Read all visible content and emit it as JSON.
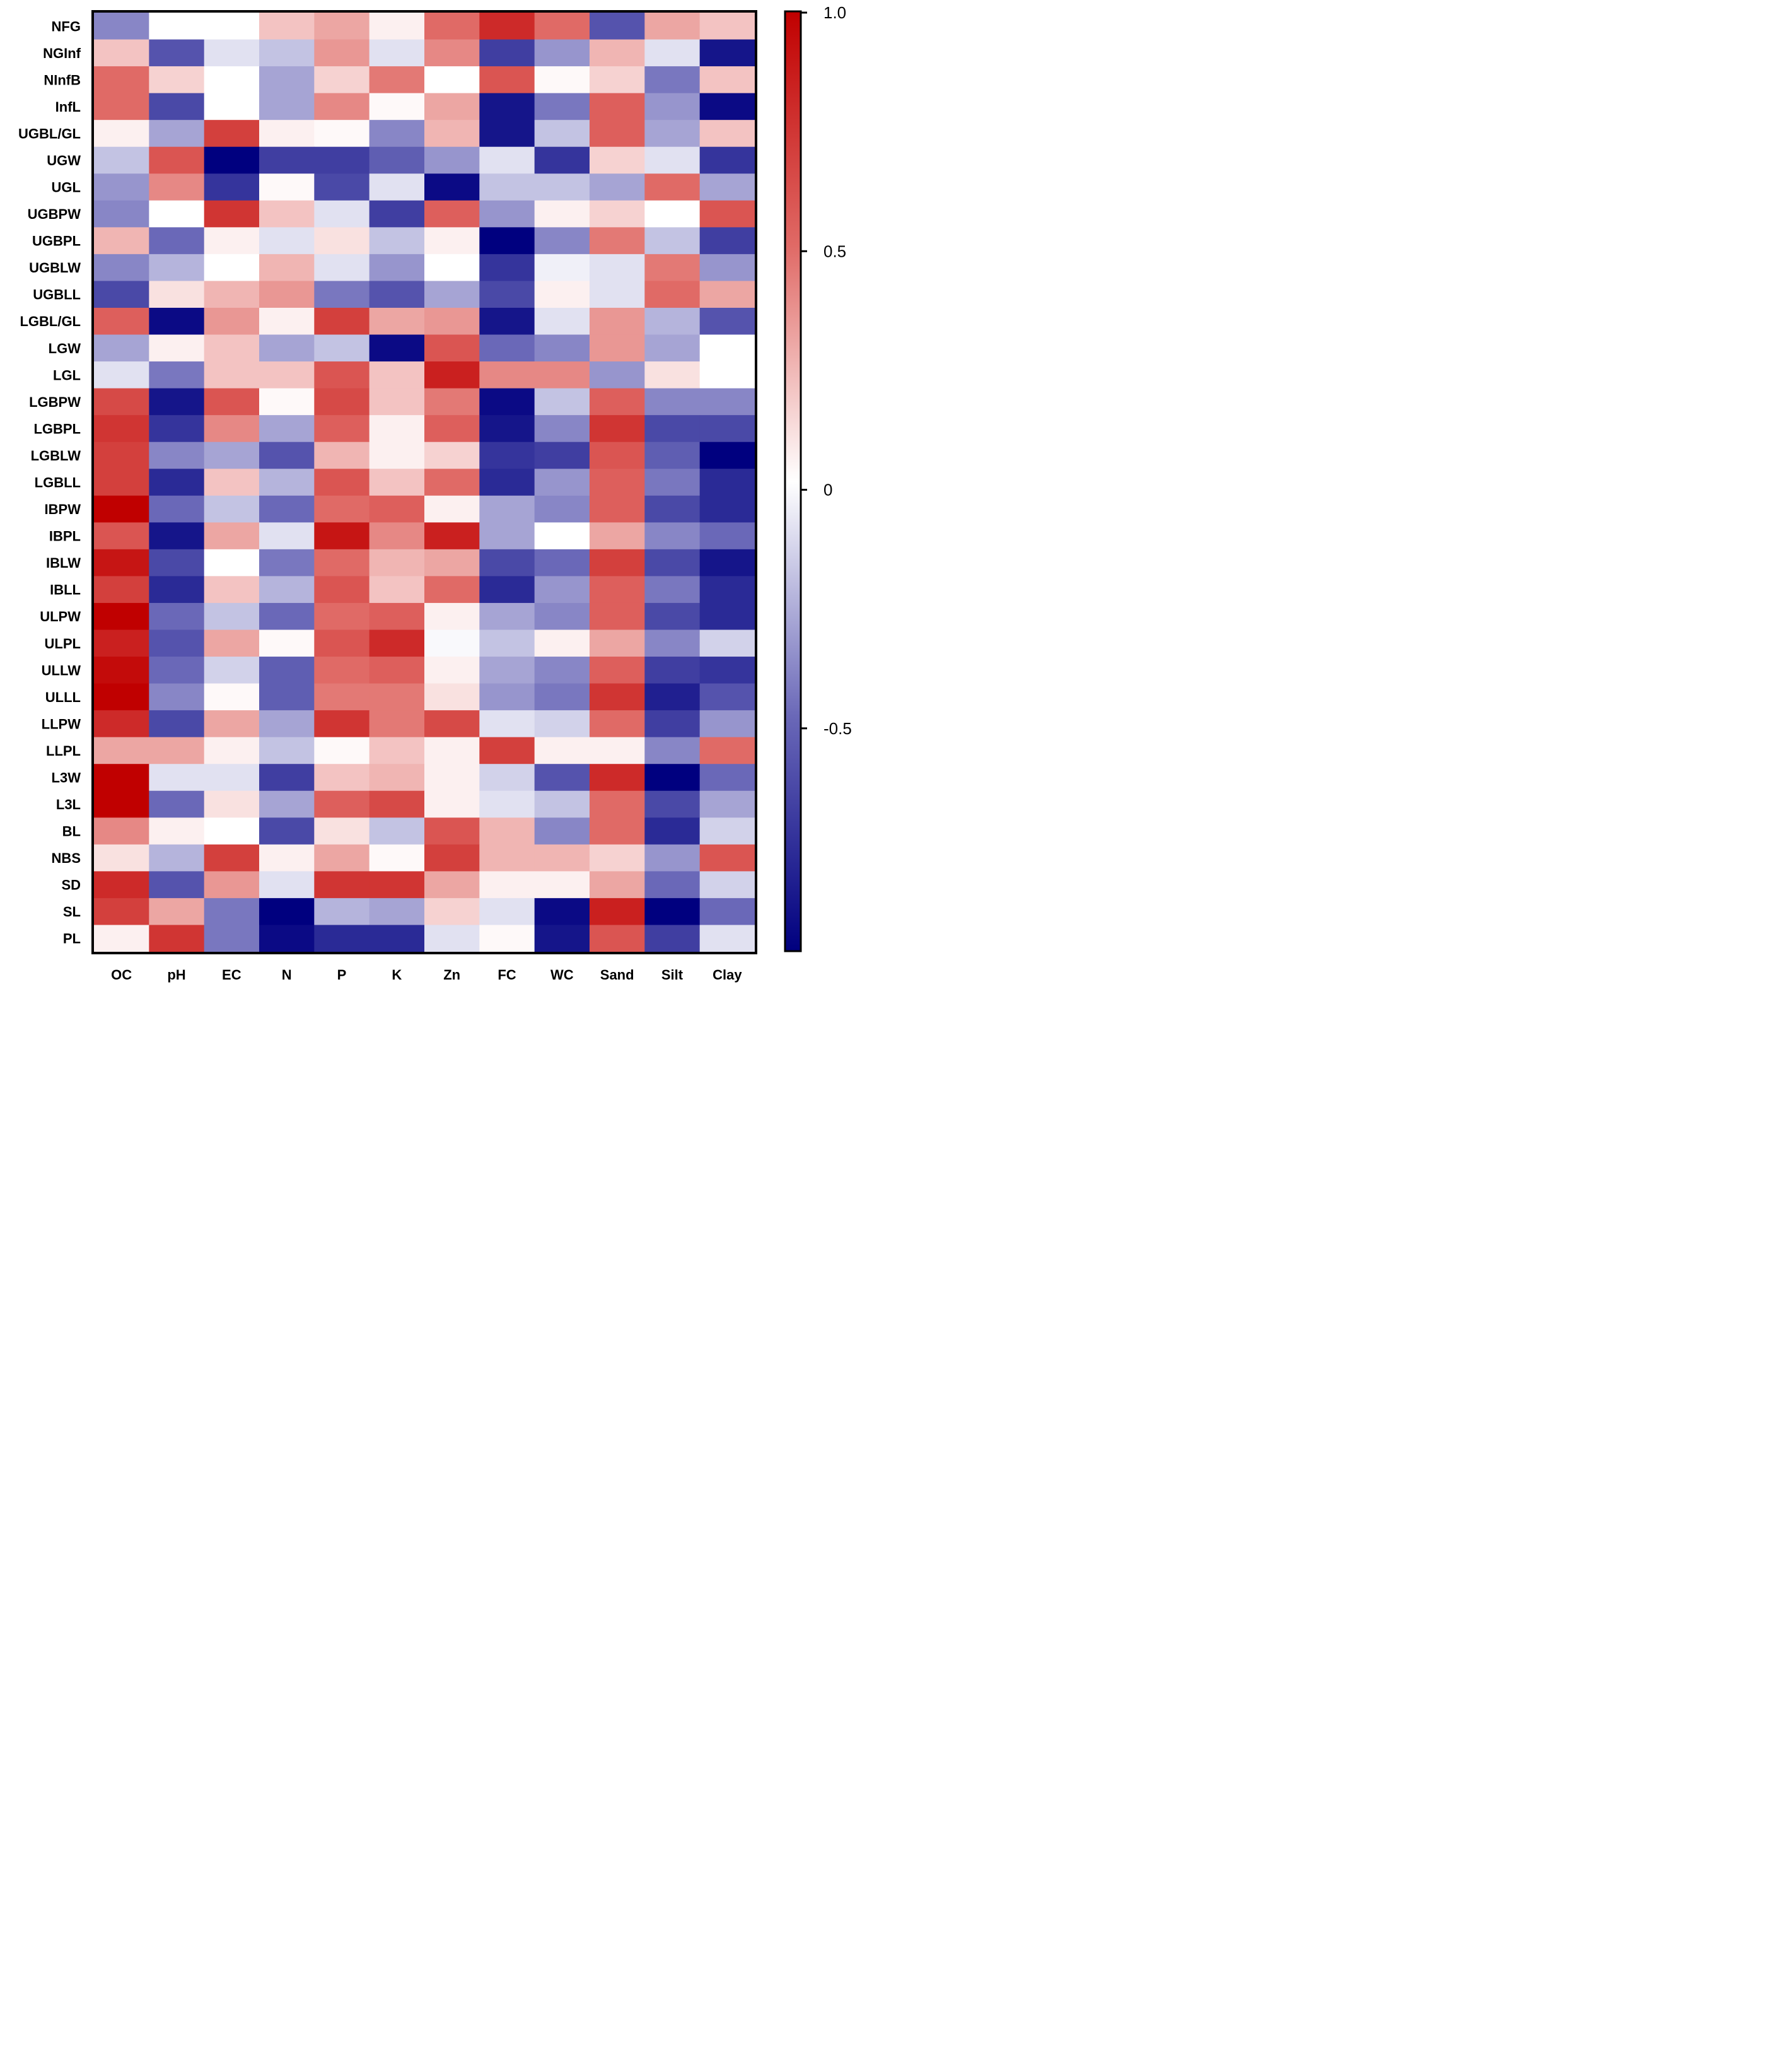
{
  "chart_data": {
    "type": "heatmap",
    "title": "",
    "xlabel": "",
    "ylabel": "",
    "columns": [
      "OC",
      "pH",
      "EC",
      "N",
      "P",
      "K",
      "Zn",
      "FC",
      "WC",
      "Sand",
      "Silt",
      "Clay"
    ],
    "rows": [
      "NFG",
      "NGInf",
      "NInfB",
      "InfL",
      "UGBL/GL",
      "UGW",
      "UGL",
      "UGBPW",
      "UGBPL",
      "UGBLW",
      "UGBLL",
      "LGBL/GL",
      "LGW",
      "LGL",
      "LGBPW",
      "LGBPL",
      "LGBLW",
      "LGBLL",
      "IBPW",
      "IBPL",
      "IBLW",
      "IBLL",
      "ULPW",
      "ULPL",
      "ULLW",
      "ULLL",
      "LLPW",
      "LLPL",
      "L3W",
      "L3L",
      "BL",
      "NBS",
      "SD",
      "SL",
      "PL"
    ],
    "values": [
      [
        -0.4,
        0.0,
        0.0,
        0.2,
        0.3,
        0.05,
        0.5,
        0.8,
        0.5,
        -0.6,
        0.3,
        0.2
      ],
      [
        0.2,
        -0.6,
        -0.1,
        -0.2,
        0.35,
        -0.1,
        0.4,
        -0.7,
        -0.35,
        0.25,
        -0.1,
        -0.9
      ],
      [
        0.5,
        0.15,
        0.0,
        -0.3,
        0.15,
        0.45,
        0.0,
        0.6,
        0.02,
        0.15,
        -0.45,
        0.2
      ],
      [
        0.5,
        -0.65,
        0.0,
        -0.3,
        0.4,
        0.02,
        0.3,
        -0.9,
        -0.45,
        0.55,
        -0.35,
        -0.95
      ],
      [
        0.05,
        -0.3,
        0.7,
        0.05,
        0.02,
        -0.4,
        0.25,
        -0.9,
        -0.2,
        0.55,
        -0.3,
        0.2
      ],
      [
        -0.2,
        0.6,
        -1.0,
        -0.7,
        -0.7,
        -0.55,
        -0.35,
        -0.1,
        -0.75,
        0.15,
        -0.1,
        -0.75
      ],
      [
        -0.35,
        0.4,
        -0.75,
        0.02,
        -0.65,
        -0.1,
        -0.95,
        -0.2,
        -0.2,
        -0.3,
        0.5,
        -0.3
      ],
      [
        -0.4,
        0.0,
        0.75,
        0.2,
        -0.1,
        -0.7,
        0.55,
        -0.35,
        0.05,
        0.15,
        0.0,
        0.6
      ],
      [
        0.25,
        -0.5,
        0.05,
        -0.1,
        0.1,
        -0.2,
        0.05,
        -1.0,
        -0.4,
        0.45,
        -0.2,
        -0.7
      ],
      [
        -0.4,
        -0.25,
        0.0,
        0.25,
        -0.1,
        -0.35,
        0.0,
        -0.75,
        -0.05,
        -0.1,
        0.45,
        -0.35
      ],
      [
        -0.65,
        0.1,
        0.25,
        0.35,
        -0.45,
        -0.6,
        -0.3,
        -0.65,
        0.05,
        -0.1,
        0.5,
        0.3
      ],
      [
        0.55,
        -0.95,
        0.35,
        0.05,
        0.7,
        0.3,
        0.35,
        -0.9,
        -0.1,
        0.35,
        -0.25,
        -0.6
      ],
      [
        -0.3,
        0.05,
        0.2,
        -0.3,
        -0.2,
        -0.95,
        0.6,
        -0.5,
        -0.4,
        0.35,
        -0.3,
        0.0
      ],
      [
        -0.1,
        -0.45,
        0.2,
        0.2,
        0.6,
        0.2,
        0.85,
        0.4,
        0.4,
        -0.35,
        0.1,
        0.0
      ],
      [
        0.65,
        -0.9,
        0.6,
        0.02,
        0.65,
        0.2,
        0.45,
        -0.95,
        -0.2,
        0.55,
        -0.4,
        -0.4
      ],
      [
        0.75,
        -0.75,
        0.4,
        -0.3,
        0.55,
        0.05,
        0.55,
        -0.9,
        -0.4,
        0.75,
        -0.65,
        -0.65
      ],
      [
        0.7,
        -0.4,
        -0.3,
        -0.6,
        0.25,
        0.05,
        0.15,
        -0.75,
        -0.7,
        0.6,
        -0.55,
        -1.0
      ],
      [
        0.7,
        -0.8,
        0.2,
        -0.25,
        0.6,
        0.2,
        0.5,
        -0.8,
        -0.35,
        0.55,
        -0.45,
        -0.8
      ],
      [
        1.0,
        -0.5,
        -0.2,
        -0.5,
        0.5,
        0.55,
        0.05,
        -0.3,
        -0.4,
        0.55,
        -0.65,
        -0.8
      ],
      [
        0.6,
        -0.9,
        0.3,
        -0.1,
        0.9,
        0.4,
        0.85,
        -0.3,
        0.0,
        0.3,
        -0.4,
        -0.5
      ],
      [
        0.9,
        -0.65,
        0.0,
        -0.45,
        0.5,
        0.25,
        0.3,
        -0.65,
        -0.5,
        0.7,
        -0.65,
        -0.9
      ],
      [
        0.7,
        -0.8,
        0.2,
        -0.25,
        0.6,
        0.2,
        0.5,
        -0.8,
        -0.35,
        0.55,
        -0.45,
        -0.8
      ],
      [
        1.0,
        -0.5,
        -0.2,
        -0.5,
        0.5,
        0.55,
        0.05,
        -0.3,
        -0.4,
        0.55,
        -0.65,
        -0.8
      ],
      [
        0.85,
        -0.6,
        0.3,
        0.02,
        0.6,
        0.8,
        -0.02,
        -0.2,
        0.05,
        0.3,
        -0.4,
        -0.15
      ],
      [
        0.95,
        -0.5,
        -0.15,
        -0.55,
        0.5,
        0.55,
        0.05,
        -0.3,
        -0.4,
        0.55,
        -0.7,
        -0.75
      ],
      [
        1.0,
        -0.4,
        0.02,
        -0.55,
        0.45,
        0.45,
        0.1,
        -0.35,
        -0.45,
        0.75,
        -0.85,
        -0.6
      ],
      [
        0.8,
        -0.65,
        0.3,
        -0.3,
        0.75,
        0.45,
        0.65,
        -0.1,
        -0.15,
        0.5,
        -0.7,
        -0.35
      ],
      [
        0.3,
        0.3,
        0.05,
        -0.2,
        0.02,
        0.2,
        0.05,
        0.7,
        0.05,
        0.05,
        -0.4,
        0.5
      ],
      [
        1.0,
        -0.1,
        -0.1,
        -0.7,
        0.2,
        0.25,
        0.05,
        -0.15,
        -0.6,
        0.8,
        -1.0,
        -0.5
      ],
      [
        1.0,
        -0.5,
        0.1,
        -0.3,
        0.55,
        0.65,
        0.05,
        -0.1,
        -0.2,
        0.5,
        -0.65,
        -0.3
      ],
      [
        0.4,
        0.05,
        0.0,
        -0.65,
        0.1,
        -0.2,
        0.6,
        0.25,
        -0.4,
        0.5,
        -0.8,
        -0.15
      ],
      [
        0.1,
        -0.25,
        0.7,
        0.05,
        0.3,
        0.02,
        0.7,
        0.25,
        0.25,
        0.15,
        -0.35,
        0.6
      ],
      [
        0.8,
        -0.6,
        0.35,
        -0.1,
        0.75,
        0.75,
        0.3,
        0.05,
        0.05,
        0.3,
        -0.5,
        -0.15
      ],
      [
        0.7,
        0.3,
        -0.45,
        -1.0,
        -0.25,
        -0.3,
        0.15,
        -0.1,
        -0.95,
        0.85,
        -1.0,
        -0.5
      ],
      [
        0.05,
        0.75,
        -0.45,
        -0.95,
        -0.8,
        -0.8,
        -0.1,
        0.02,
        -0.9,
        0.6,
        -0.7,
        -0.1
      ]
    ],
    "colorbar": {
      "range": [
        -1.0,
        1.0
      ],
      "ticks": [
        1.0,
        0.5,
        0,
        -0.5
      ],
      "tick_labels": [
        "1.0",
        "0.5",
        "0",
        "-0.5"
      ],
      "colors": {
        "low": "#00007f",
        "mid": "#ffffff",
        "high": "#c00000"
      }
    }
  }
}
